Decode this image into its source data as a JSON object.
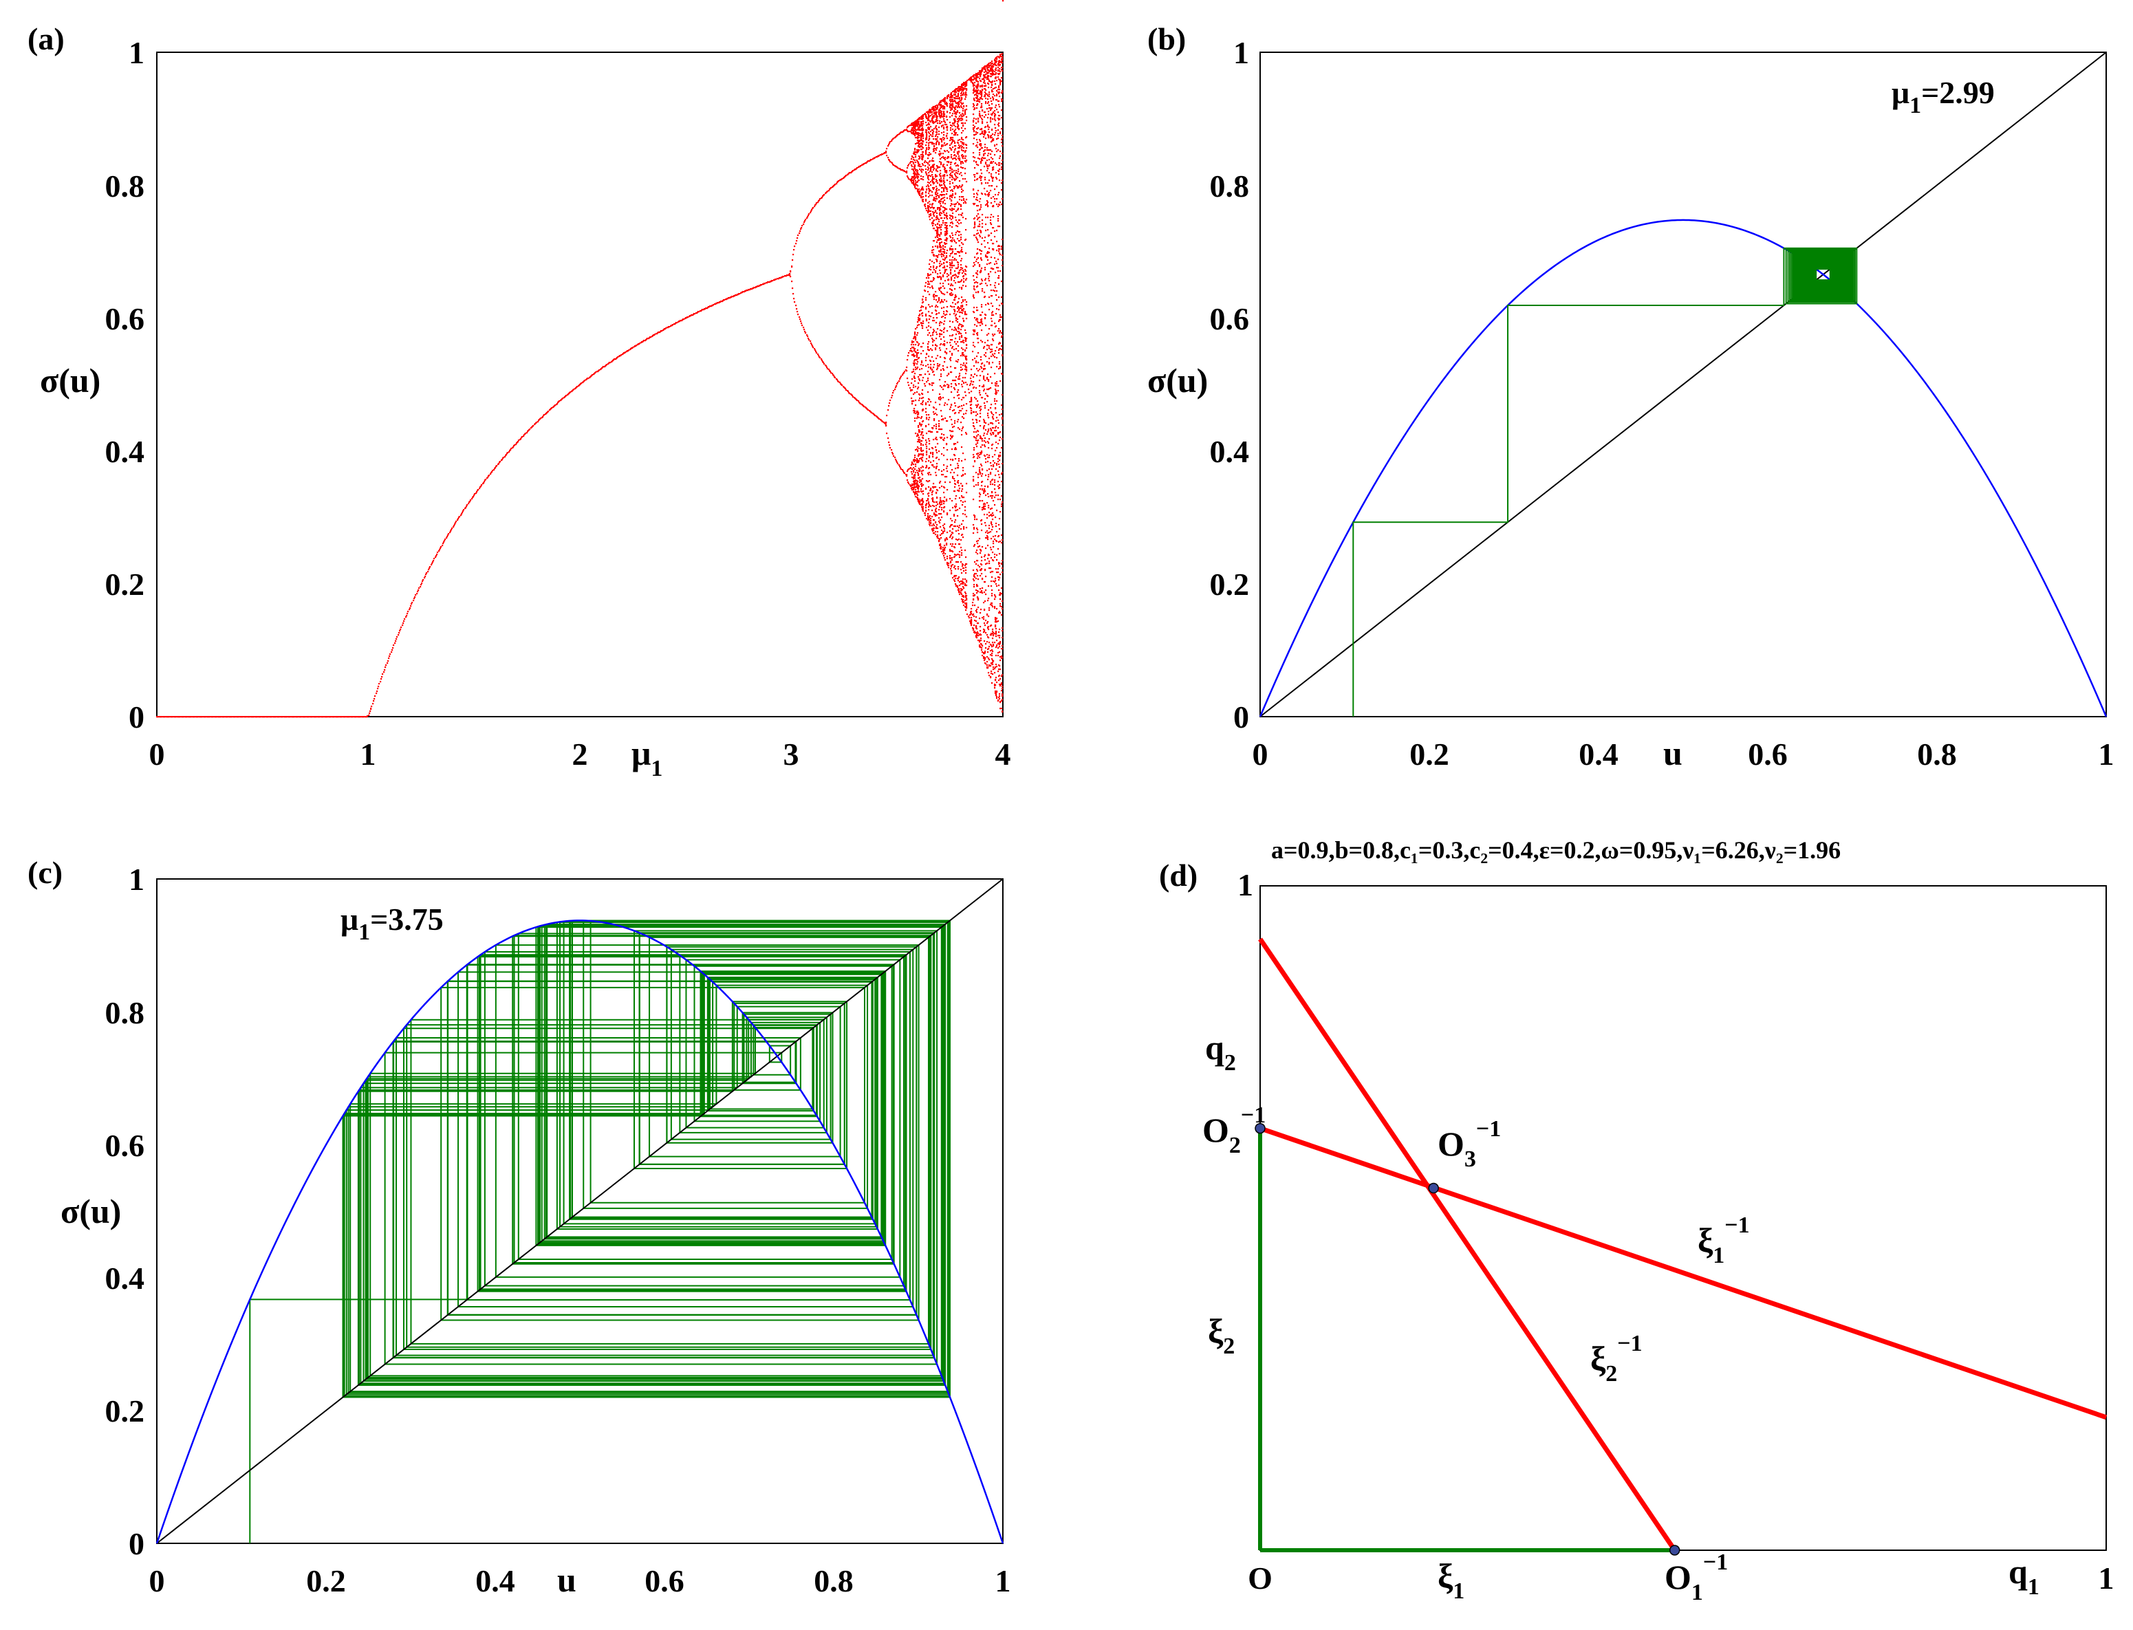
{
  "chart_data": [
    {
      "id": "a",
      "type": "scatter",
      "panel_label": "(a)",
      "title": "",
      "xlabel": "μ",
      "xlabel_sub": "1",
      "ylabel": "σ(u)",
      "xlim": [
        0,
        4
      ],
      "ylim": [
        0,
        1
      ],
      "xticks": [
        "0",
        "1",
        "2",
        "3",
        "4"
      ],
      "yticks": [
        "0",
        "0.2",
        "0.4",
        "0.6",
        "0.8",
        "1"
      ],
      "colors": {
        "points": "#ff0000"
      },
      "series": [
        {
          "name": "bifurcation diagram of logistic map σ(u)=μ₁u(1−u)",
          "model": "logistic",
          "mu_range": [
            0,
            4
          ],
          "mu_step": 0.004,
          "transient": 400,
          "samples": 60
        }
      ]
    },
    {
      "id": "b",
      "type": "line",
      "panel_label": "(b)",
      "xlabel": "u",
      "ylabel": "σ(u)",
      "xlim": [
        0,
        1
      ],
      "ylim": [
        0,
        1
      ],
      "xticks": [
        "0",
        "0.2",
        "0.4",
        "0.6",
        "0.8",
        "1"
      ],
      "yticks": [
        "0",
        "0.2",
        "0.4",
        "0.6",
        "0.8",
        "1"
      ],
      "annotation": {
        "base": "μ",
        "sub": "1",
        "text": "=2.99"
      },
      "mu": 2.99,
      "u0": 0.11,
      "iterations": 120,
      "colors": {
        "curve": "#0000ff",
        "diagonal": "#000000",
        "cobweb": "#008000"
      },
      "series": [
        {
          "name": "σ(u)=μ₁u(1−u)",
          "kind": "parabola"
        },
        {
          "name": "identity line σ=u",
          "x": [
            0,
            1
          ],
          "y": [
            0,
            1
          ]
        },
        {
          "name": "cobweb iteration",
          "kind": "cobweb"
        }
      ]
    },
    {
      "id": "c",
      "type": "line",
      "panel_label": "(c)",
      "xlabel": "u",
      "ylabel": "σ(u)",
      "xlim": [
        0,
        1
      ],
      "ylim": [
        0,
        1
      ],
      "xticks": [
        "0",
        "0.2",
        "0.4",
        "0.6",
        "0.8",
        "1"
      ],
      "yticks": [
        "0",
        "0.2",
        "0.4",
        "0.6",
        "0.8",
        "1"
      ],
      "annotation": {
        "base": "μ",
        "sub": "1",
        "text": "=3.75"
      },
      "mu": 3.75,
      "u0": 0.11,
      "iterations": 160,
      "colors": {
        "curve": "#0000ff",
        "diagonal": "#000000",
        "cobweb": "#008000"
      },
      "series": [
        {
          "name": "σ(u)=μ₁u(1−u)",
          "kind": "parabola"
        },
        {
          "name": "identity line σ=u",
          "x": [
            0,
            1
          ],
          "y": [
            0,
            1
          ]
        },
        {
          "name": "cobweb iteration",
          "kind": "cobweb"
        }
      ]
    },
    {
      "id": "d",
      "type": "line",
      "panel_label": "(d)",
      "xlabel": "q",
      "xlabel_sub": "1",
      "ylabel": "q",
      "ylabel_sub": "2",
      "xlim": [
        0,
        1
      ],
      "ylim": [
        0,
        1
      ],
      "xticks": [
        "O",
        "1"
      ],
      "yticks": [
        "1"
      ],
      "params_title": "a=0.9,b=0.8,c₁=0.3,c₂=0.4,ε=0.2,ω=0.95,ν₁=6.26,ν₂=1.96",
      "colors": {
        "red": "#ff0000",
        "green": "#008000",
        "point": "#3a4a9a"
      },
      "series": [
        {
          "name": "ξ₂⁻¹",
          "x": [
            0,
            0.49
          ],
          "y": [
            0.92,
            0
          ]
        },
        {
          "name": "ξ₁⁻¹",
          "x": [
            0,
            1
          ],
          "y": [
            0.635,
            0.2
          ]
        },
        {
          "name": "ξ₂",
          "x": [
            0,
            0
          ],
          "y": [
            0,
            0.635
          ]
        },
        {
          "name": "ξ₁",
          "x": [
            0,
            0.49
          ],
          "y": [
            0,
            0
          ]
        }
      ],
      "points": [
        {
          "name": "O₁⁻¹",
          "x": 0.49,
          "y": 0
        },
        {
          "name": "O₂⁻¹",
          "x": 0,
          "y": 0.635
        },
        {
          "name": "O₃⁻¹",
          "x": 0.205,
          "y": 0.545
        }
      ],
      "labels": {
        "O1": {
          "base": "O",
          "sub": "1",
          "sup": "−1"
        },
        "O2": {
          "base": "O",
          "sub": "2",
          "sup": "−1"
        },
        "O3": {
          "base": "O",
          "sub": "3",
          "sup": "−1"
        },
        "xi1_inv": {
          "base": "ξ",
          "sub": "1",
          "sup": "−1"
        },
        "xi2_inv": {
          "base": "ξ",
          "sub": "2",
          "sup": "−1"
        },
        "xi1": {
          "base": "ξ",
          "sub": "1"
        },
        "xi2": {
          "base": "ξ",
          "sub": "2"
        }
      }
    }
  ]
}
